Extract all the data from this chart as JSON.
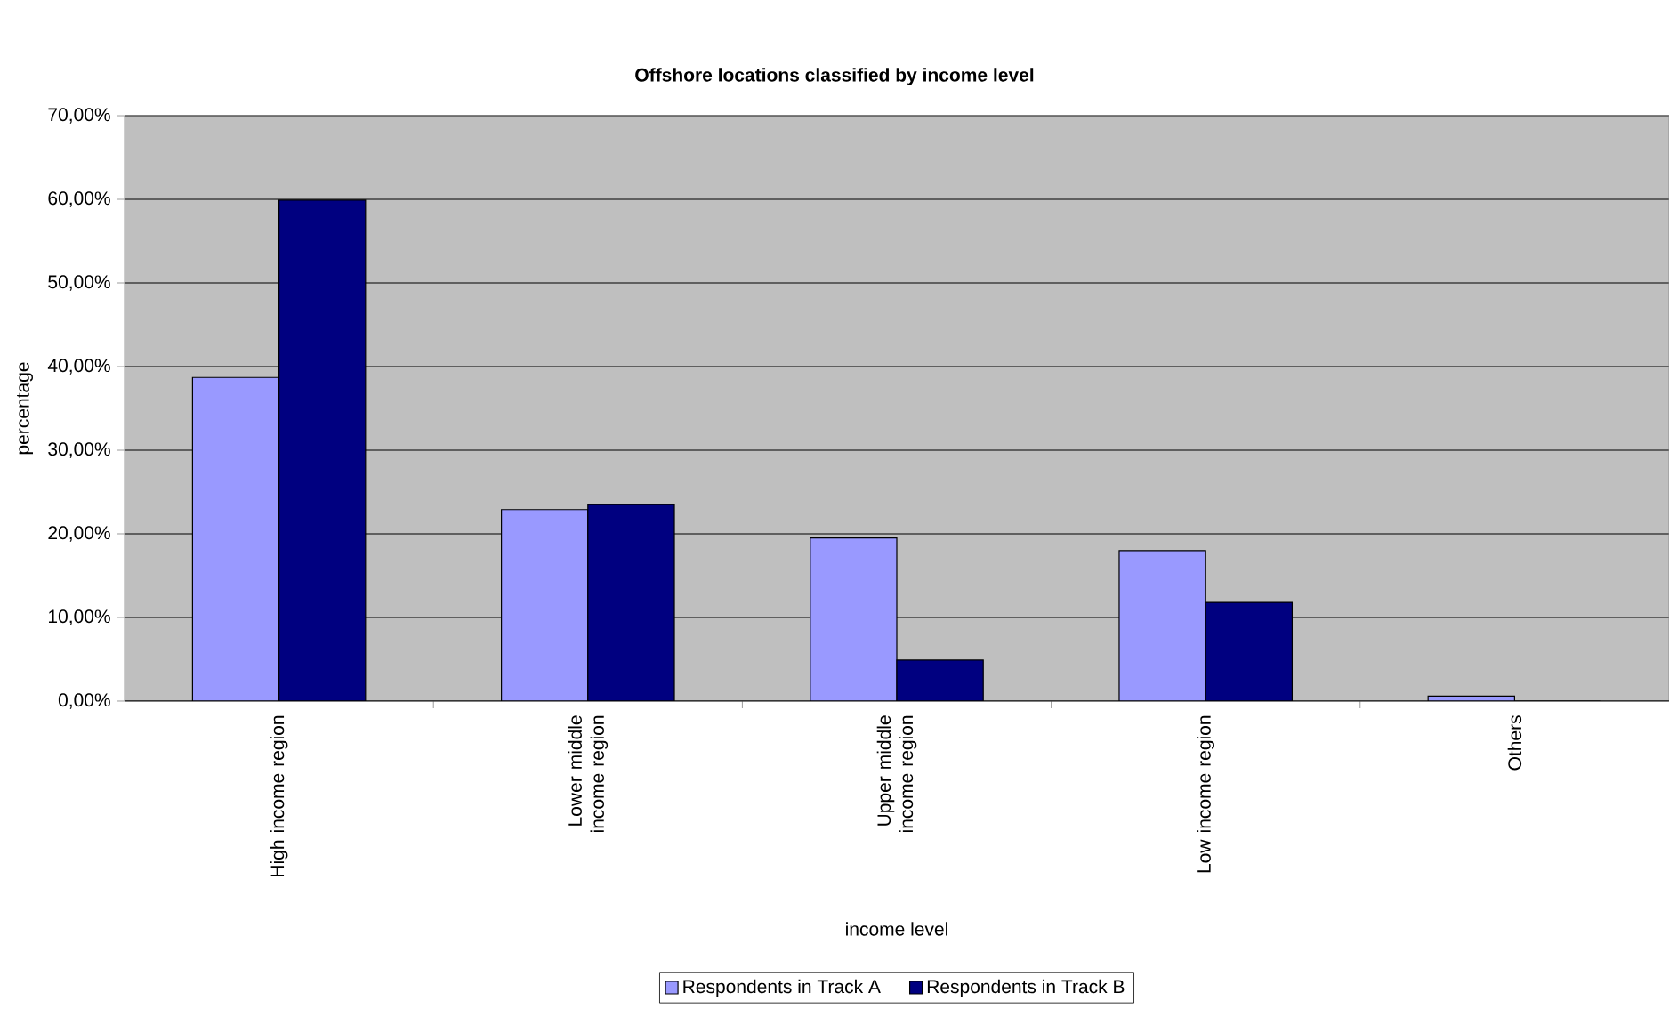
{
  "chart_data": {
    "type": "bar",
    "title": "Offshore locations classified by income level",
    "xlabel": "income level",
    "ylabel": "percentage",
    "categories": [
      "High income region",
      "Lower middle income region",
      "Upper middle income region",
      "Low income region",
      "Others"
    ],
    "series": [
      {
        "name": "Respondents in Track A",
        "color": "#9999ff",
        "values": [
          38.7,
          22.9,
          19.5,
          18.0,
          0.6
        ]
      },
      {
        "name": "Respondents in Track B",
        "color": "#000080",
        "values": [
          59.9,
          23.5,
          4.9,
          11.8,
          0
        ]
      }
    ],
    "ylim": [
      0,
      70
    ],
    "yticks": [
      {
        "value": 0,
        "label": "0,00%"
      },
      {
        "value": 10,
        "label": "10,00%"
      },
      {
        "value": 20,
        "label": "20,00%"
      },
      {
        "value": 30,
        "label": "30,00%"
      },
      {
        "value": 40,
        "label": "40,00%"
      },
      {
        "value": 50,
        "label": "50,00%"
      },
      {
        "value": 60,
        "label": "60,00%"
      },
      {
        "value": 70,
        "label": "70,00%"
      }
    ],
    "grid": "y",
    "legend": "bottom"
  }
}
